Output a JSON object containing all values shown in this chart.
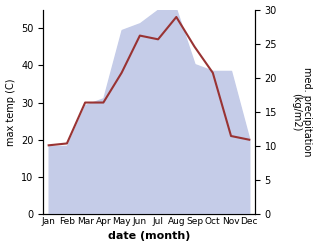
{
  "months": [
    "Jan",
    "Feb",
    "Mar",
    "Apr",
    "May",
    "Jun",
    "Jul",
    "Aug",
    "Sep",
    "Oct",
    "Nov",
    "Dec"
  ],
  "temperature": [
    18.5,
    19,
    30,
    30,
    38,
    48,
    47,
    53,
    45,
    38,
    21,
    20
  ],
  "precipitation": [
    10,
    10,
    16,
    17,
    27,
    28,
    30,
    30,
    22,
    21,
    21,
    11
  ],
  "temp_color": "#993333",
  "precip_fill_color": "#c5cce8",
  "ylabel_left": "max temp (C)",
  "ylabel_right": "med. precipitation\n(kg/m2)",
  "xlabel": "date (month)",
  "ylim_left": [
    0,
    55
  ],
  "ylim_right": [
    0,
    30
  ],
  "left_ticks": [
    0,
    10,
    20,
    30,
    40,
    50
  ],
  "right_ticks": [
    0,
    5,
    10,
    15,
    20,
    25,
    30
  ],
  "background_color": "#ffffff"
}
